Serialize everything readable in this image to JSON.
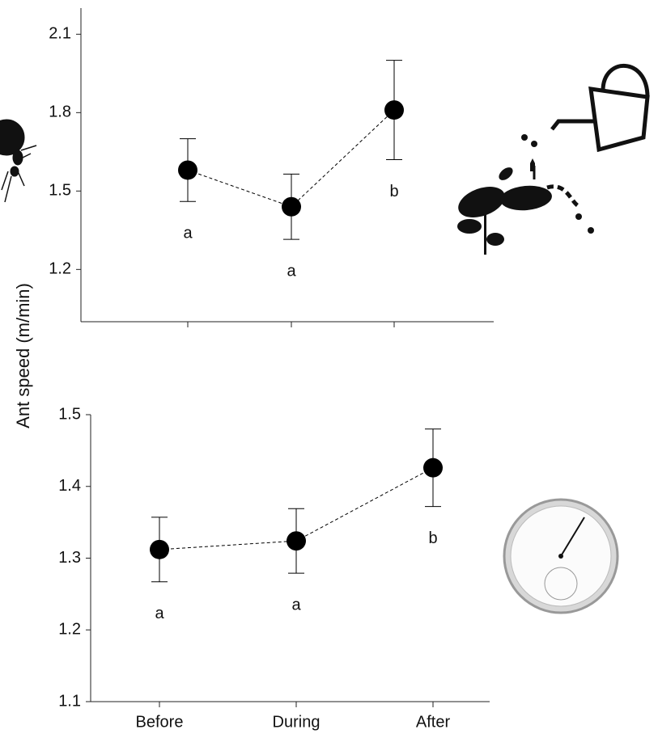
{
  "ylabel": "Ant speed (m/min)",
  "chart_data": [
    {
      "type": "errorbar",
      "categories": [
        null,
        null,
        null
      ],
      "series": [
        {
          "color": "#000000",
          "values": [
            1.58,
            1.44,
            1.81
          ],
          "errors": [
            0.12,
            0.125,
            0.19
          ],
          "annotations": [
            "a",
            "a",
            "b"
          ]
        }
      ],
      "ylim": [
        1.0,
        2.2
      ],
      "yticks": [
        1.2,
        1.5,
        1.8,
        2.1
      ],
      "line_style": "dashed"
    },
    {
      "type": "errorbar",
      "categories": [
        "Before",
        "During",
        "After"
      ],
      "series": [
        {
          "color": "#000000",
          "values": [
            1.312,
            1.324,
            1.426
          ],
          "errors": [
            0.045,
            0.045,
            0.054
          ],
          "annotations": [
            "a",
            "a",
            "b"
          ]
        }
      ],
      "ylim": [
        1.1,
        1.5
      ],
      "yticks": [
        1.1,
        1.2,
        1.3,
        1.4,
        1.5
      ],
      "line_style": "dashed"
    }
  ]
}
